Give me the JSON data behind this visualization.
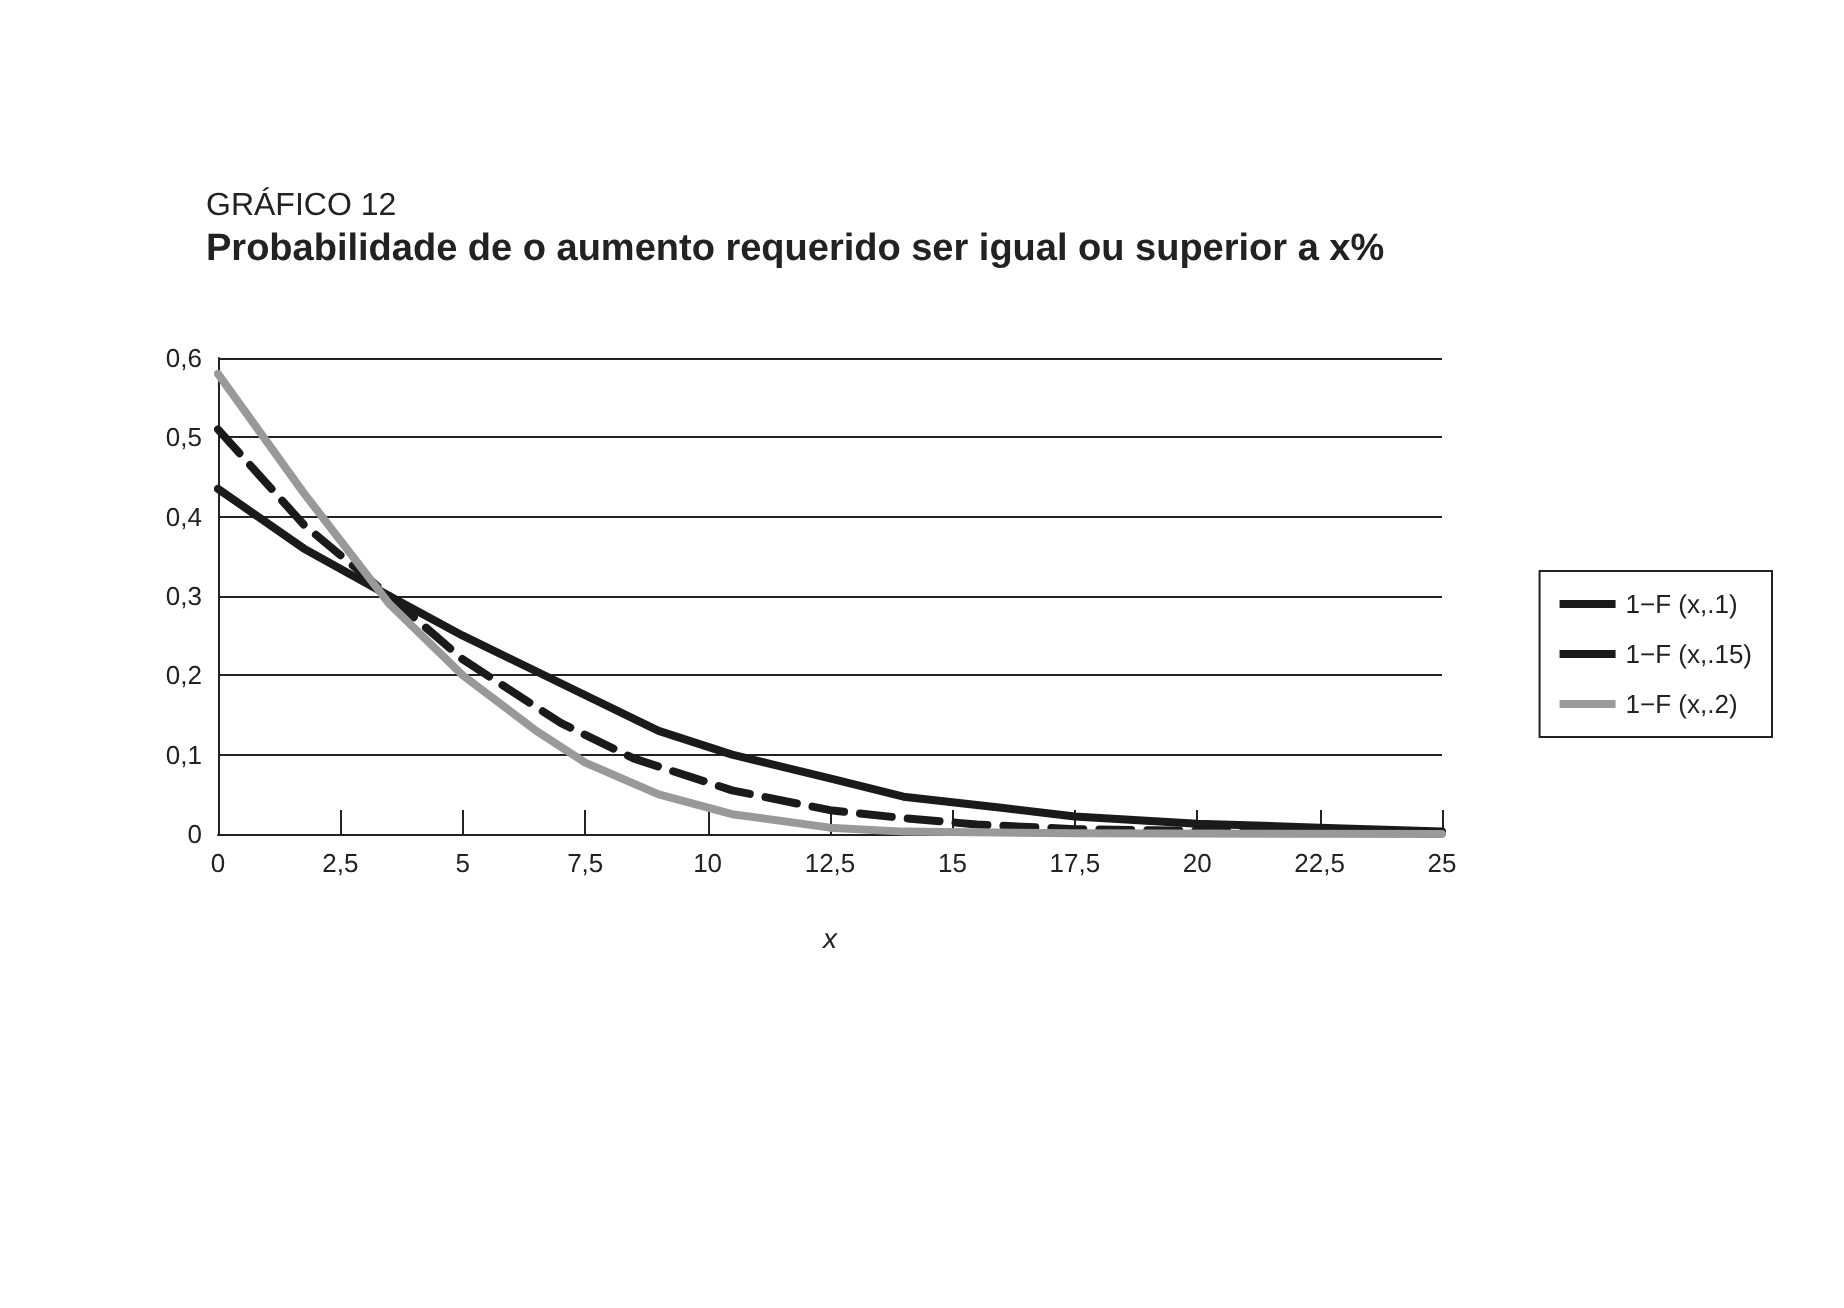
{
  "chart_data": {
    "type": "line",
    "subtitle": "GRÁFICO 12",
    "title": "Probabilidade de o aumento requerido ser igual ou superior a x%",
    "xlabel": "x",
    "xlim": [
      0,
      25
    ],
    "xticks": [
      0,
      {
        "value": 2.5,
        "label": "2,5"
      },
      5,
      {
        "value": 7.5,
        "label": "7,5"
      },
      10,
      {
        "value": 12.5,
        "label": "12,5"
      },
      15,
      {
        "value": 17.5,
        "label": "17,5"
      },
      20,
      {
        "value": 22.5,
        "label": "22,5"
      },
      25
    ],
    "ylim": [
      0,
      0.6
    ],
    "yticks": [
      0,
      {
        "value": 0.1,
        "label": "0,1"
      },
      {
        "value": 0.2,
        "label": "0,2"
      },
      {
        "value": 0.3,
        "label": "0,3"
      },
      {
        "value": 0.4,
        "label": "0,4"
      },
      {
        "value": 0.5,
        "label": "0,5"
      },
      {
        "value": 0.6,
        "label": "0,6"
      }
    ],
    "grid": "y",
    "legend": "right",
    "marker": "none",
    "series": [
      {
        "name": "1−F (x,.1)",
        "color": "#1a1a1a",
        "line_style": "solid",
        "x": [
          0,
          1.75,
          3.5,
          5,
          7,
          9,
          10.5,
          12.5,
          14,
          16,
          17.5,
          20,
          22.5,
          25
        ],
        "values": [
          0.435,
          0.36,
          0.3,
          0.25,
          0.19,
          0.13,
          0.1,
          0.07,
          0.047,
          0.033,
          0.022,
          0.013,
          0.008,
          0.003
        ]
      },
      {
        "name": "1−F (x,.15)",
        "color": "#1a1a1a",
        "line_style": "dashed",
        "x": [
          0,
          1.75,
          3.5,
          5,
          7,
          8.5,
          10.5,
          12.5,
          14,
          15.5,
          17.5,
          20,
          25
        ],
        "values": [
          0.51,
          0.39,
          0.3,
          0.22,
          0.14,
          0.095,
          0.055,
          0.03,
          0.02,
          0.012,
          0.006,
          0.004,
          0.002
        ]
      },
      {
        "name": "1−F (x,.2)",
        "color": "#999999",
        "line_style": "solid",
        "x": [
          0,
          1.75,
          3.5,
          5,
          6.5,
          7.5,
          9,
          10.5,
          12.5,
          14,
          17.5,
          25
        ],
        "values": [
          0.58,
          0.43,
          0.29,
          0.2,
          0.13,
          0.09,
          0.05,
          0.025,
          0.008,
          0.003,
          0.001,
          0
        ]
      }
    ]
  }
}
